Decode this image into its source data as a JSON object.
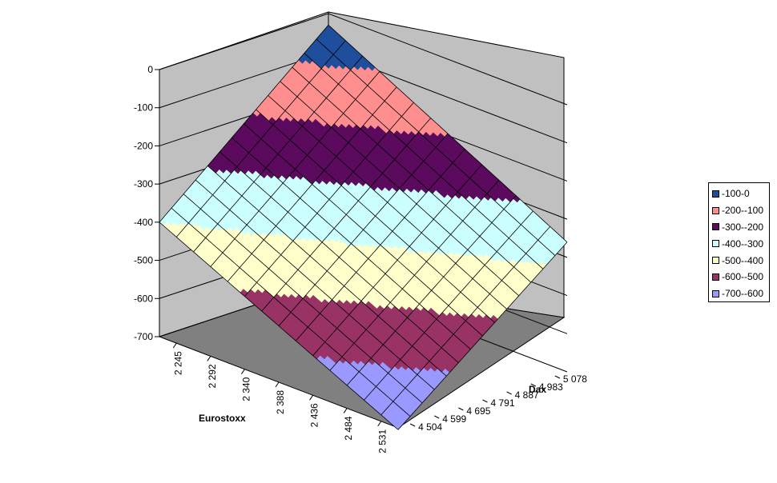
{
  "chart_data": {
    "type": "surface",
    "z_axis": {
      "ticks": [
        "0",
        "-100",
        "-200",
        "-300",
        "-400",
        "-500",
        "-600",
        "-700"
      ],
      "range": [
        -700,
        0
      ]
    },
    "x_axis": {
      "label": "Eurostoxx",
      "ticks": [
        "2 245",
        "2 292",
        "2 340",
        "2 388",
        "2 436",
        "2 484",
        "2 531"
      ]
    },
    "y_axis": {
      "label": "Dax",
      "ticks": [
        "4 504",
        "4 599",
        "4 695",
        "4 791",
        "4 887",
        "4 983",
        "5 078"
      ]
    },
    "bands": [
      {
        "label": "-100-0",
        "color": "#1f4e9c"
      },
      {
        "label": "-200--100",
        "color": "#ff8f8f"
      },
      {
        "label": "-300--200",
        "color": "#5b0a5e"
      },
      {
        "label": "-400--300",
        "color": "#ccffff"
      },
      {
        "label": "-500--400",
        "color": "#ffffcc"
      },
      {
        "label": "-600--500",
        "color": "#993366"
      },
      {
        "label": "-700--600",
        "color": "#9999ff"
      }
    ],
    "surface_corners": {
      "eurostoxx_min_dax_max": -30,
      "eurostoxx_max_dax_max": -360,
      "eurostoxx_min_dax_min": -400,
      "eurostoxx_max_dax_min": -705
    },
    "grid": true,
    "legend_position": "right"
  }
}
